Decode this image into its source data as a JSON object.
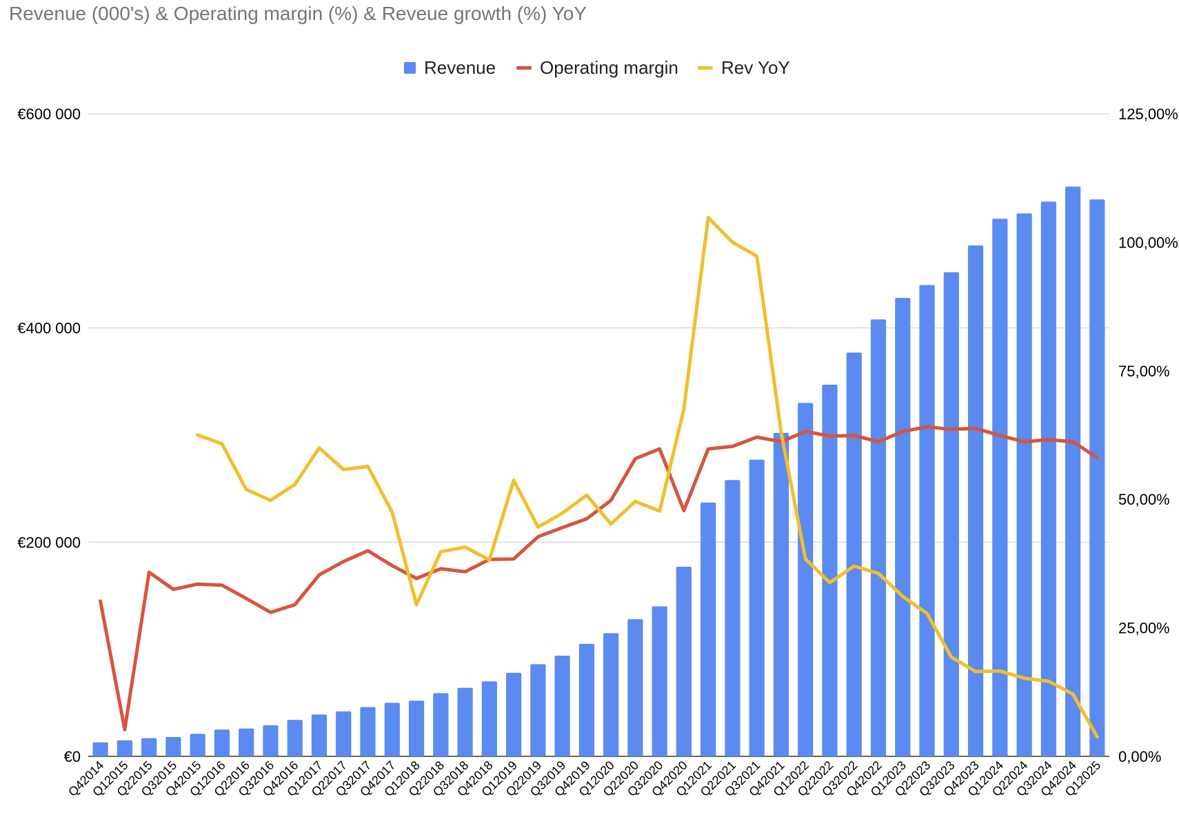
{
  "chart_data": {
    "type": "bar",
    "title": "Revenue (000's) & Operating margin (%) & Reveue growth (%) YoY",
    "categories": [
      "Q42014",
      "Q12015",
      "Q22015",
      "Q32015",
      "Q42015",
      "Q12016",
      "Q22016",
      "Q32016",
      "Q42016",
      "Q12017",
      "Q22017",
      "Q32017",
      "Q42017",
      "Q12018",
      "Q22018",
      "Q32018",
      "Q42018",
      "Q12019",
      "Q22019",
      "Q32019",
      "Q42019",
      "Q12020",
      "Q22020",
      "Q32020",
      "Q42020",
      "Q12021",
      "Q22021",
      "Q32021",
      "Q42021",
      "Q12022",
      "Q22022",
      "Q32022",
      "Q42022",
      "Q12023",
      "Q22023",
      "Q32023",
      "Q42023",
      "Q12024",
      "Q22024",
      "Q32024",
      "Q42024",
      "Q12025"
    ],
    "series": [
      {
        "name": "Revenue",
        "type": "bar",
        "axis": "left",
        "color": "#5b8af0",
        "values": [
          13000,
          15000,
          17000,
          18000,
          21000,
          25000,
          26000,
          29000,
          34000,
          39000,
          42000,
          46000,
          50000,
          52000,
          59000,
          64000,
          70000,
          78000,
          86000,
          94000,
          105000,
          115000,
          128000,
          140000,
          177000,
          237000,
          258000,
          277000,
          302000,
          330000,
          347000,
          377000,
          408000,
          428000,
          440000,
          452000,
          477000,
          502000,
          507000,
          518000,
          532000,
          520000
        ]
      },
      {
        "name": "Operating margin",
        "type": "line",
        "axis": "right",
        "color": "#d5553f",
        "values": [
          30.2,
          5.2,
          35.8,
          32.5,
          33.5,
          33.3,
          30.7,
          28.0,
          29.5,
          35.3,
          37.9,
          40.0,
          37.1,
          34.6,
          36.5,
          35.9,
          38.3,
          38.4,
          42.7,
          44.5,
          46.2,
          49.8,
          57.9,
          59.8,
          47.8,
          59.8,
          60.3,
          62.1,
          61.2,
          63.2,
          62.3,
          62.4,
          61.2,
          63.2,
          64.1,
          63.6,
          63.8,
          62.4,
          61.2,
          61.6,
          61.2,
          58.1
        ]
      },
      {
        "name": "Rev YoY",
        "type": "line",
        "axis": "right",
        "color": "#f0bf2e",
        "values": [
          null,
          null,
          null,
          null,
          62.5,
          60.8,
          51.9,
          49.8,
          52.9,
          60.0,
          55.8,
          56.4,
          47.5,
          29.5,
          39.8,
          40.7,
          38.2,
          53.7,
          44.6,
          47.3,
          50.8,
          45.2,
          49.6,
          47.7,
          67.6,
          104.8,
          100.0,
          97.3,
          63.0,
          38.4,
          33.8,
          37.0,
          35.6,
          31.1,
          27.8,
          19.3,
          16.5,
          16.6,
          15.2,
          14.6,
          12.1,
          3.8
        ]
      }
    ],
    "left_axis": {
      "min": 0,
      "max": 600000,
      "ticks": [
        0,
        200000,
        400000,
        600000
      ],
      "tick_labels": [
        "€0",
        "€200 000",
        "€400 000",
        "€600 000"
      ]
    },
    "right_axis": {
      "min": 0,
      "max": 125,
      "ticks": [
        0,
        25,
        50,
        75,
        100,
        125
      ],
      "tick_labels": [
        "0,00%",
        "25,00%",
        "50,00%",
        "75,00%",
        "100,00%",
        "125,00%"
      ]
    },
    "grid": true,
    "legend": "top-center",
    "gridline_color": "#cccccc"
  }
}
